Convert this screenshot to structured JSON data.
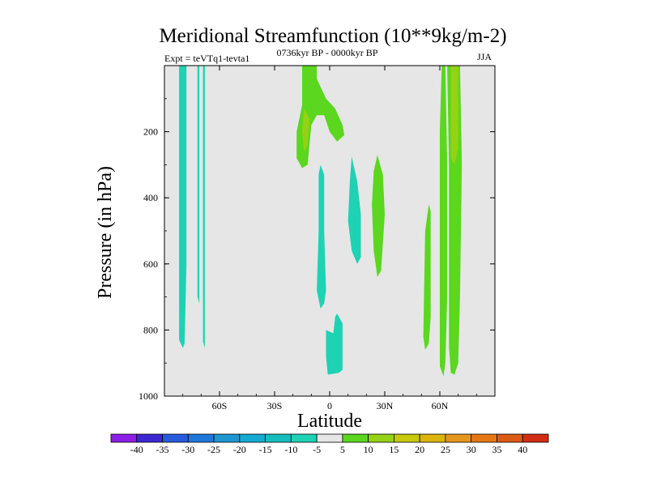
{
  "chart_data": {
    "type": "contour",
    "title": "Meridional Streamfunction (10**9kg/m-2)",
    "subtitle_left": "Expt = teVTq1-tevta1",
    "subtitle_center": "0736kyr BP - 0000kyr BP",
    "subtitle_right": "JJA",
    "xlabel": "Latitude",
    "ylabel": "Pressure (in hPa)",
    "xlim": [
      -90,
      90
    ],
    "ylim": [
      1000,
      0
    ],
    "x_ticks": [
      {
        "value": -60,
        "label": "60S"
      },
      {
        "value": -30,
        "label": "30S"
      },
      {
        "value": 0,
        "label": "0"
      },
      {
        "value": 30,
        "label": "30N"
      },
      {
        "value": 60,
        "label": "60N"
      }
    ],
    "y_ticks": [
      {
        "value": 200,
        "label": "200"
      },
      {
        "value": 400,
        "label": "400"
      },
      {
        "value": 600,
        "label": "600"
      },
      {
        "value": 800,
        "label": "800"
      },
      {
        "value": 1000,
        "label": "1000"
      }
    ],
    "background_color": "#e6e6e6",
    "colorbar": {
      "labels": [
        "-40",
        "-35",
        "-30",
        "-25",
        "-20",
        "-15",
        "-10",
        "-5",
        "5",
        "10",
        "15",
        "20",
        "25",
        "30",
        "35",
        "40"
      ],
      "colors": [
        "#8c1ee6",
        "#3c28d2",
        "#285adc",
        "#1e78dc",
        "#1e96d2",
        "#14aad2",
        "#14bebe",
        "#1ed2b4",
        "#e6e6e6",
        "#5ad71e",
        "#96d214",
        "#c8c80a",
        "#dcb40a",
        "#e6961e",
        "#e67814",
        "#dc5a14",
        "#d22d14"
      ]
    },
    "regions": [
      {
        "name": "contour-sh-high-lat-neg-1",
        "level": -10,
        "color": "#1ed2b4",
        "points": [
          [
            -82,
            0
          ],
          [
            -78,
            0
          ],
          [
            -78,
            200
          ],
          [
            -78,
            600
          ],
          [
            -79,
            840
          ],
          [
            -80,
            855
          ],
          [
            -82,
            830
          ],
          [
            -82,
            400
          ]
        ]
      },
      {
        "name": "contour-sh-high-lat-neg-2",
        "level": -10,
        "color": "#1ed2b4",
        "points": [
          [
            -72,
            0
          ],
          [
            -71,
            0
          ],
          [
            -71,
            300
          ],
          [
            -71,
            720
          ],
          [
            -72,
            700
          ],
          [
            -72,
            300
          ]
        ]
      },
      {
        "name": "contour-sh-high-lat-neg-3",
        "level": -10,
        "color": "#1ed2b4",
        "points": [
          [
            -69,
            0
          ],
          [
            -68,
            0
          ],
          [
            -68,
            400
          ],
          [
            -68,
            855
          ],
          [
            -69,
            835
          ],
          [
            -69,
            400
          ]
        ]
      },
      {
        "name": "contour-subtropical-pos",
        "level": 10,
        "color": "#5ad71e",
        "points": [
          [
            -15,
            0
          ],
          [
            -7,
            0
          ],
          [
            -7,
            40
          ],
          [
            -2,
            100
          ],
          [
            3,
            130
          ],
          [
            7,
            180
          ],
          [
            8,
            210
          ],
          [
            4,
            230
          ],
          [
            0,
            200
          ],
          [
            -3,
            150
          ],
          [
            -7,
            150
          ],
          [
            -10,
            180
          ],
          [
            -12,
            300
          ],
          [
            -15,
            310
          ],
          [
            -18,
            280
          ],
          [
            -18,
            200
          ],
          [
            -15,
            120
          ]
        ]
      },
      {
        "name": "contour-subtropical-pos-inner",
        "level": 15,
        "color": "#96d214",
        "points": [
          [
            -14,
            130
          ],
          [
            -11,
            160
          ],
          [
            -12,
            240
          ],
          [
            -14,
            260
          ],
          [
            -15,
            200
          ]
        ]
      },
      {
        "name": "contour-equatorial-neg",
        "level": -10,
        "color": "#1ed2b4",
        "points": [
          [
            -5,
            300
          ],
          [
            -3,
            330
          ],
          [
            -3,
            500
          ],
          [
            -2,
            680
          ],
          [
            -3,
            720
          ],
          [
            -5,
            735
          ],
          [
            -7,
            680
          ],
          [
            -6,
            500
          ],
          [
            -6,
            330
          ]
        ]
      },
      {
        "name": "contour-nh-tropics-neg-upper",
        "level": -10,
        "color": "#1ed2b4",
        "points": [
          [
            12,
            275
          ],
          [
            15,
            350
          ],
          [
            17,
            450
          ],
          [
            17,
            580
          ],
          [
            15,
            600
          ],
          [
            12,
            560
          ],
          [
            10,
            470
          ],
          [
            11,
            350
          ]
        ]
      },
      {
        "name": "contour-nh-subtropics-pos",
        "level": 10,
        "color": "#5ad71e",
        "points": [
          [
            26,
            270
          ],
          [
            29,
            330
          ],
          [
            30,
            450
          ],
          [
            28,
            620
          ],
          [
            26,
            640
          ],
          [
            24,
            560
          ],
          [
            23,
            420
          ],
          [
            24,
            320
          ]
        ]
      },
      {
        "name": "contour-equatorial-neg-lower",
        "level": -10,
        "color": "#1ed2b4",
        "points": [
          [
            4,
            750
          ],
          [
            7,
            780
          ],
          [
            7,
            920
          ],
          [
            5,
            930
          ],
          [
            -1,
            935
          ],
          [
            -2,
            880
          ],
          [
            -2,
            800
          ],
          [
            2,
            810
          ],
          [
            3,
            760
          ]
        ]
      },
      {
        "name": "contour-nh-midlat-pos-1",
        "level": 10,
        "color": "#5ad71e",
        "points": [
          [
            54,
            420
          ],
          [
            55,
            440
          ],
          [
            55,
            760
          ],
          [
            54,
            840
          ],
          [
            52,
            860
          ],
          [
            51,
            820
          ],
          [
            52,
            500
          ]
        ]
      },
      {
        "name": "contour-nh-highlat-pos-2",
        "level": 10,
        "color": "#5ad71e",
        "points": [
          [
            61,
            0
          ],
          [
            63,
            0
          ],
          [
            64,
            300
          ],
          [
            64,
            700
          ],
          [
            63,
            900
          ],
          [
            62,
            940
          ],
          [
            60,
            910
          ],
          [
            60,
            600
          ],
          [
            60,
            200
          ]
        ]
      },
      {
        "name": "contour-nh-highlat-pos-3",
        "level": 10,
        "color": "#5ad71e",
        "points": [
          [
            64,
            0
          ],
          [
            71,
            0
          ],
          [
            72,
            300
          ],
          [
            71,
            700
          ],
          [
            70,
            900
          ],
          [
            68,
            935
          ],
          [
            66,
            930
          ],
          [
            65,
            850
          ],
          [
            65,
            300
          ]
        ]
      },
      {
        "name": "contour-nh-highlat-pos-3-inner",
        "level": 15,
        "color": "#96d214",
        "points": [
          [
            66,
            0
          ],
          [
            70,
            0
          ],
          [
            70,
            250
          ],
          [
            68,
            300
          ],
          [
            66,
            280
          ]
        ]
      }
    ]
  }
}
